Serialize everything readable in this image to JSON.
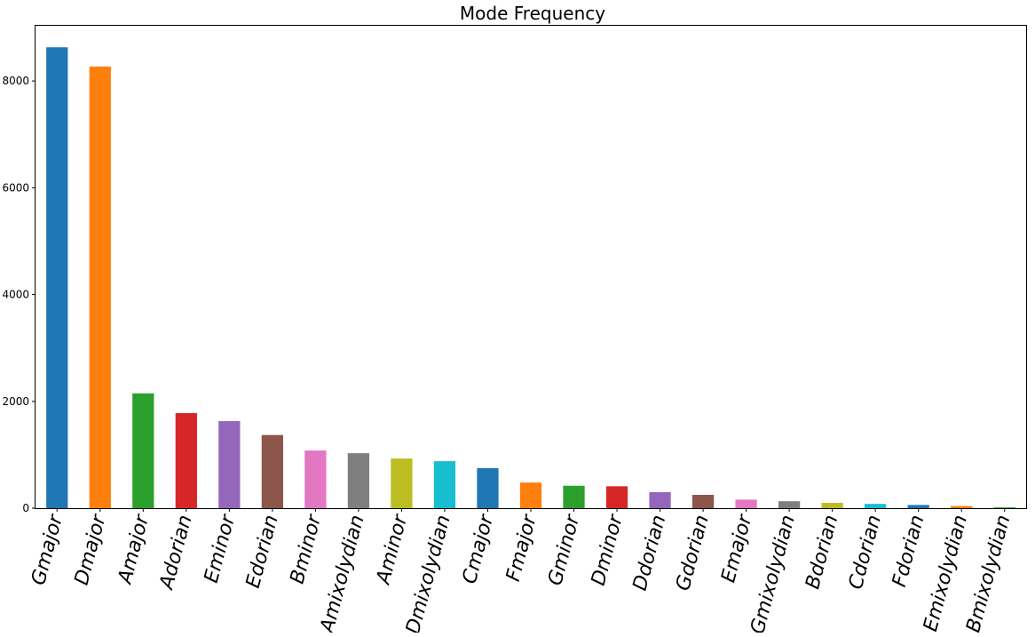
{
  "chart_data": {
    "type": "bar",
    "title": "Mode Frequency",
    "xlabel": "",
    "ylabel": "",
    "ylim": [
      0,
      9050
    ],
    "yticks": [
      0,
      2000,
      4000,
      6000,
      8000
    ],
    "ytick_labels": [
      "0",
      "2000",
      "4000",
      "6000",
      "8000"
    ],
    "grid": false,
    "legend": false,
    "categories": [
      "Gmajor",
      "Dmajor",
      "Amajor",
      "Adorian",
      "Eminor",
      "Edorian",
      "Bminor",
      "Amixolydian",
      "Aminor",
      "Dmixolydian",
      "Cmajor",
      "Fmajor",
      "Gminor",
      "Dminor",
      "Ddorian",
      "Gdorian",
      "Emajor",
      "Gmixolydian",
      "Bdorian",
      "Cdorian",
      "Fdorian",
      "Emixolydian",
      "Bmixolydian"
    ],
    "values": [
      8630,
      8270,
      2150,
      1780,
      1630,
      1370,
      1080,
      1030,
      930,
      880,
      750,
      480,
      420,
      410,
      300,
      250,
      160,
      130,
      100,
      80,
      60,
      40,
      15
    ],
    "colors": [
      "#1f77b4",
      "#ff7f0e",
      "#2ca02c",
      "#d62728",
      "#9467bd",
      "#8c564b",
      "#e377c2",
      "#7f7f7f",
      "#bcbd22",
      "#17becf",
      "#1f77b4",
      "#ff7f0e",
      "#2ca02c",
      "#d62728",
      "#9467bd",
      "#8c564b",
      "#e377c2",
      "#7f7f7f",
      "#bcbd22",
      "#17becf",
      "#1f77b4",
      "#ff7f0e",
      "#2ca02c"
    ]
  }
}
